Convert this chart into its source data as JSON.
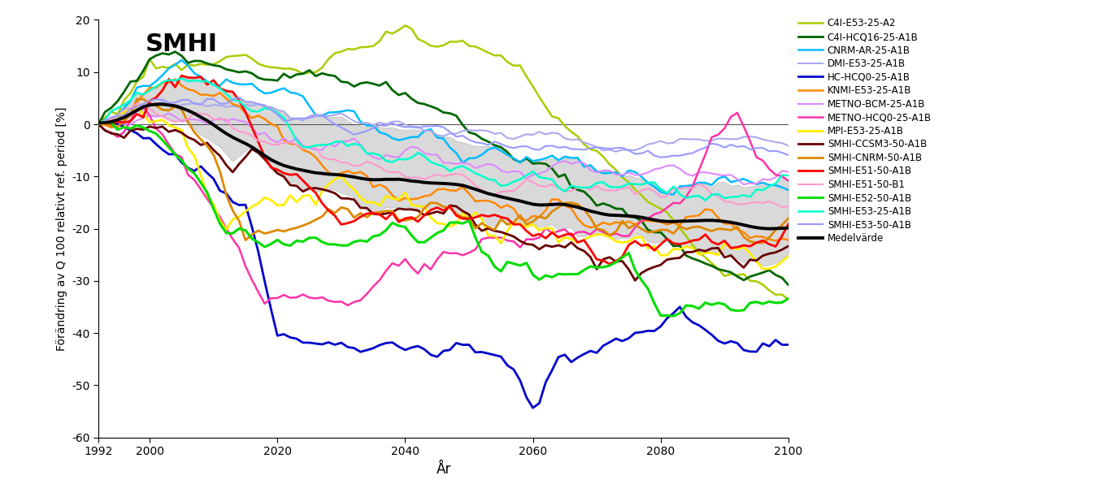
{
  "xlabel": "År",
  "ylabel": "Förändring av Q 100 relativt ref. period [%]",
  "xlim": [
    1992,
    2100
  ],
  "ylim": [
    -60,
    20
  ],
  "yticks": [
    -60,
    -50,
    -40,
    -30,
    -20,
    -10,
    0,
    10,
    20
  ],
  "xticks": [
    1992,
    2000,
    2020,
    2040,
    2060,
    2080,
    2100
  ],
  "series": {
    "C4I-E53-25-A2": {
      "color": "#aacc00",
      "lw": 1.8
    },
    "C4I-HCQ16-25-A1B": {
      "color": "#006600",
      "lw": 2.0
    },
    "CNRM-AR-25-A1B": {
      "color": "#00bbff",
      "lw": 1.8
    },
    "DMI-E53-25-A1B": {
      "color": "#aaaaee",
      "lw": 1.5
    },
    "HC-HCQ0-25-A1B": {
      "color": "#0000cc",
      "lw": 2.0
    },
    "KNMI-E53-25-A1B": {
      "color": "#ff8800",
      "lw": 1.8
    },
    "METNO-BCM-25-A1B": {
      "color": "#dd88ff",
      "lw": 1.5
    },
    "METNO-HCQ0-25-A1B": {
      "color": "#ff33aa",
      "lw": 1.8
    },
    "MPI-E53-25-A1B": {
      "color": "#ffee00",
      "lw": 2.0
    },
    "SMHI-CCSM3-50-A1B": {
      "color": "#660000",
      "lw": 2.0
    },
    "SMHI-CNRM-50-A1B": {
      "color": "#dd8800",
      "lw": 2.0
    },
    "SMHI-E51-50-A1B": {
      "color": "#ff0000",
      "lw": 2.0
    },
    "SMHI-E51-50-B1": {
      "color": "#ff99cc",
      "lw": 1.5
    },
    "SMHI-E52-50-A1B": {
      "color": "#00dd00",
      "lw": 2.2
    },
    "SMHI-E53-25-A1B": {
      "color": "#00ffcc",
      "lw": 1.8
    },
    "SMHI-E53-50-A1B": {
      "color": "#9999ff",
      "lw": 1.5
    },
    "Medelvärde": {
      "color": "#000000",
      "lw": 2.8
    }
  },
  "bg_color": "#ffffff",
  "shade_color": "#bbbbbb"
}
